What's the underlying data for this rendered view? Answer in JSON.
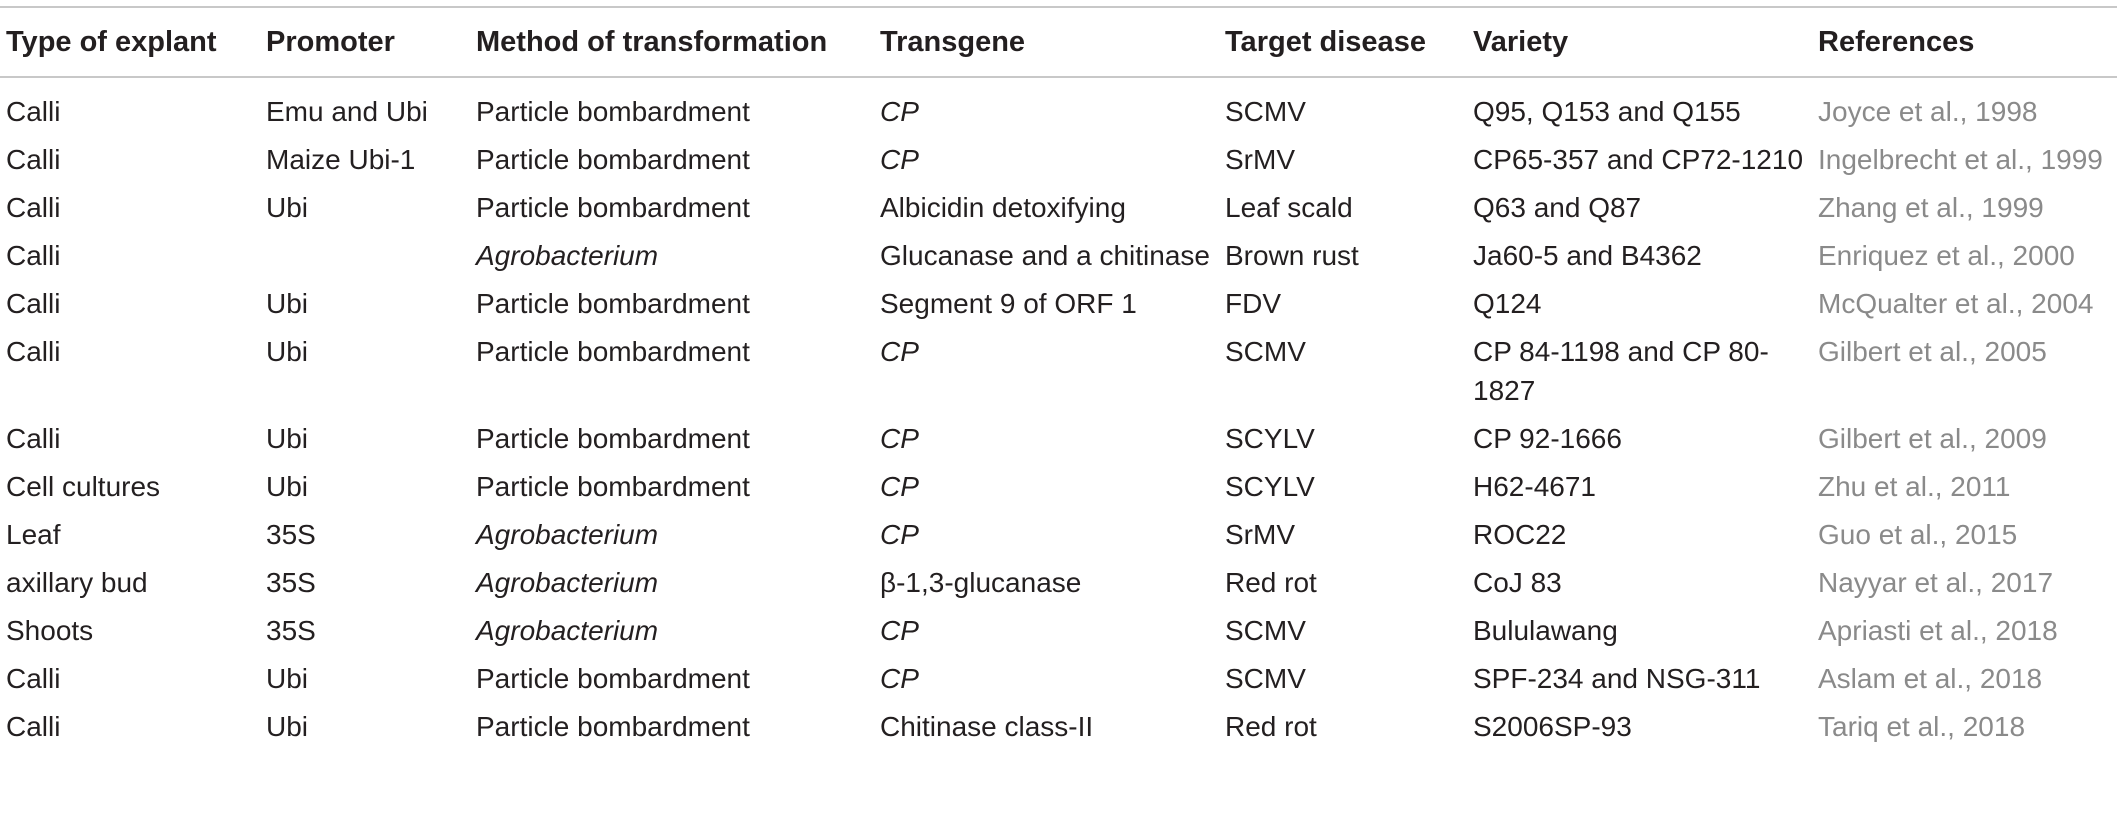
{
  "table": {
    "headers": [
      "Type of explant",
      "Promoter",
      "Method of transformation",
      "Transgene",
      "Target disease",
      "Variety",
      "References"
    ],
    "rows": [
      [
        "Calli",
        "Emu and Ubi",
        "Particle bombardment",
        "CP",
        "SCMV",
        "Q95, Q153 and Q155",
        "Joyce et al., 1998"
      ],
      [
        "Calli",
        "Maize Ubi-1",
        "Particle bombardment",
        "CP",
        "SrMV",
        "CP65-357 and CP72-1210",
        "Ingelbrecht et al., 1999"
      ],
      [
        "Calli",
        "Ubi",
        "Particle bombardment",
        "Albicidin detoxifying",
        "Leaf scald",
        "Q63 and Q87",
        "Zhang et al., 1999"
      ],
      [
        "Calli",
        "",
        "Agrobacterium",
        "Glucanase and a chitinase",
        "Brown rust",
        "Ja60-5 and B4362",
        "Enriquez et al., 2000"
      ],
      [
        "Calli",
        "Ubi",
        "Particle bombardment",
        "Segment 9 of ORF 1",
        "FDV",
        "Q124",
        "McQualter et al., 2004"
      ],
      [
        "Calli",
        "Ubi",
        "Particle bombardment",
        "CP",
        "SCMV",
        "CP 84-1198 and CP 80-1827",
        "Gilbert et al., 2005"
      ],
      [
        "Calli",
        "Ubi",
        "Particle bombardment",
        "CP",
        "SCYLV",
        "CP 92-1666",
        "Gilbert et al., 2009"
      ],
      [
        "Cell cultures",
        "Ubi",
        "Particle bombardment",
        "CP",
        "SCYLV",
        "H62-4671",
        "Zhu et al., 2011"
      ],
      [
        "Leaf",
        "35S",
        "Agrobacterium",
        "CP",
        "SrMV",
        "ROC22",
        "Guo et al., 2015"
      ],
      [
        "axillary bud",
        "35S",
        "Agrobacterium",
        "β-1,3-glucanase",
        "Red rot",
        "CoJ 83",
        "Nayyar et al., 2017"
      ],
      [
        "Shoots",
        "35S",
        "Agrobacterium",
        "CP",
        "SCMV",
        "Bululawang",
        "Apriasti et al., 2018"
      ],
      [
        "Calli",
        "Ubi",
        "Particle bombardment",
        "CP",
        "SCMV",
        "SPF-234 and NSG-311",
        "Aslam et al., 2018"
      ],
      [
        "Calli",
        "Ubi",
        "Particle bombardment",
        "Chitinase class-II",
        "Red rot",
        "S2006SP-93",
        "Tariq et al., 2018"
      ]
    ]
  }
}
